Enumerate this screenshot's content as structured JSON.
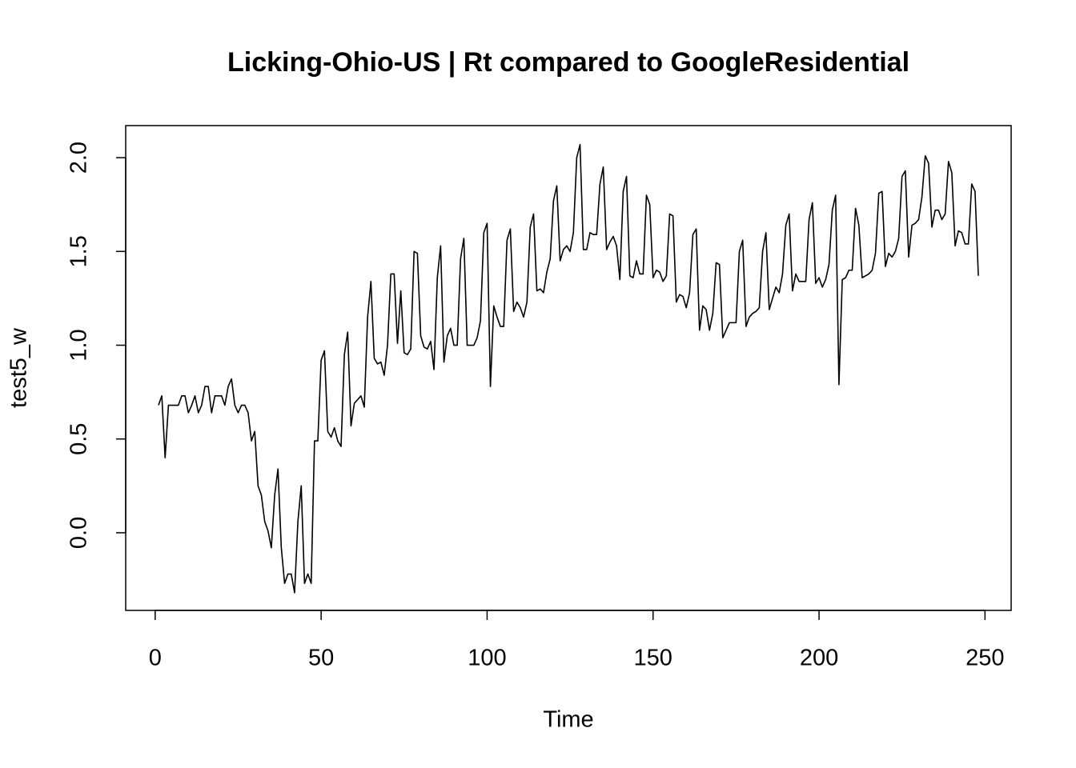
{
  "chart_data": {
    "type": "line",
    "title": "Licking-Ohio-US | Rt compared to GoogleResidential",
    "x_label": "Time",
    "y_label": "test5_w",
    "x": [
      1,
      2,
      3,
      4,
      5,
      6,
      7,
      8,
      9,
      10,
      11,
      12,
      13,
      14,
      15,
      16,
      17,
      18,
      19,
      20,
      21,
      22,
      23,
      24,
      25,
      26,
      27,
      28,
      29,
      30,
      31,
      32,
      33,
      34,
      35,
      36,
      37,
      38,
      39,
      40,
      41,
      42,
      43,
      44,
      45,
      46,
      47,
      48,
      49,
      50,
      51,
      52,
      53,
      54,
      55,
      56,
      57,
      58,
      59,
      60,
      61,
      62,
      63,
      64,
      65,
      66,
      67,
      68,
      69,
      70,
      71,
      72,
      73,
      74,
      75,
      76,
      77,
      78,
      79,
      80,
      81,
      82,
      83,
      84,
      85,
      86,
      87,
      88,
      89,
      90,
      91,
      92,
      93,
      94,
      95,
      96,
      97,
      98,
      99,
      100,
      101,
      102,
      103,
      104,
      105,
      106,
      107,
      108,
      109,
      110,
      111,
      112,
      113,
      114,
      115,
      116,
      117,
      118,
      119,
      120,
      121,
      122,
      123,
      124,
      125,
      126,
      127,
      128,
      129,
      130,
      131,
      132,
      133,
      134,
      135,
      136,
      137,
      138,
      139,
      140,
      141,
      142,
      143,
      144,
      145,
      146,
      147,
      148,
      149,
      150,
      151,
      152,
      153,
      154,
      155,
      156,
      157,
      158,
      159,
      160,
      161,
      162,
      163,
      164,
      165,
      166,
      167,
      168,
      169,
      170,
      171,
      172,
      173,
      174,
      175,
      176,
      177,
      178,
      179,
      180,
      181,
      182,
      183,
      184,
      185,
      186,
      187,
      188,
      189,
      190,
      191,
      192,
      193,
      194,
      195,
      196,
      197,
      198,
      199,
      200,
      201,
      202,
      203,
      204,
      205,
      206,
      207,
      208,
      209,
      210,
      211,
      212,
      213,
      214,
      215,
      216,
      217,
      218,
      219,
      220,
      221,
      222,
      223,
      224,
      225,
      226,
      227,
      228,
      229,
      230,
      231,
      232,
      233,
      234,
      235,
      236,
      237,
      238,
      239,
      240,
      241,
      242,
      243,
      244,
      245,
      246,
      247,
      248
    ],
    "series": [
      {
        "name": "test5_w",
        "color": "#000000",
        "values": [
          0.68,
          0.73,
          0.4,
          0.68,
          0.68,
          0.68,
          0.68,
          0.73,
          0.73,
          0.64,
          0.68,
          0.73,
          0.64,
          0.68,
          0.78,
          0.78,
          0.64,
          0.73,
          0.73,
          0.73,
          0.68,
          0.78,
          0.82,
          0.68,
          0.64,
          0.68,
          0.68,
          0.64,
          0.49,
          0.54,
          0.25,
          0.2,
          0.06,
          0.01,
          -0.08,
          0.2,
          0.34,
          -0.08,
          -0.27,
          -0.22,
          -0.22,
          -0.32,
          0.06,
          0.25,
          -0.27,
          -0.22,
          -0.27,
          0.49,
          0.49,
          0.92,
          0.97,
          0.54,
          0.51,
          0.56,
          0.49,
          0.46,
          0.95,
          1.07,
          0.57,
          0.69,
          0.71,
          0.73,
          0.67,
          1.15,
          1.34,
          0.93,
          0.9,
          0.91,
          0.84,
          1.0,
          1.38,
          1.38,
          1.01,
          1.29,
          0.96,
          0.95,
          0.98,
          1.5,
          1.49,
          1.05,
          0.99,
          0.98,
          1.02,
          0.87,
          1.36,
          1.53,
          0.91,
          1.05,
          1.09,
          1.0,
          1.0,
          1.46,
          1.57,
          1.0,
          1.0,
          1.0,
          1.04,
          1.13,
          1.6,
          1.65,
          0.78,
          1.21,
          1.15,
          1.1,
          1.1,
          1.56,
          1.62,
          1.18,
          1.23,
          1.2,
          1.15,
          1.23,
          1.63,
          1.7,
          1.29,
          1.3,
          1.28,
          1.39,
          1.46,
          1.77,
          1.85,
          1.45,
          1.51,
          1.53,
          1.5,
          1.6,
          2.0,
          2.07,
          1.51,
          1.51,
          1.6,
          1.59,
          1.59,
          1.86,
          1.95,
          1.51,
          1.55,
          1.58,
          1.53,
          1.35,
          1.82,
          1.9,
          1.37,
          1.36,
          1.45,
          1.38,
          1.38,
          1.8,
          1.75,
          1.36,
          1.4,
          1.39,
          1.34,
          1.37,
          1.7,
          1.69,
          1.23,
          1.27,
          1.26,
          1.2,
          1.28,
          1.59,
          1.62,
          1.08,
          1.21,
          1.19,
          1.08,
          1.17,
          1.44,
          1.43,
          1.04,
          1.08,
          1.12,
          1.12,
          1.12,
          1.5,
          1.56,
          1.1,
          1.15,
          1.17,
          1.18,
          1.2,
          1.5,
          1.6,
          1.19,
          1.25,
          1.31,
          1.28,
          1.38,
          1.64,
          1.7,
          1.29,
          1.38,
          1.34,
          1.34,
          1.34,
          1.67,
          1.76,
          1.33,
          1.36,
          1.31,
          1.35,
          1.43,
          1.72,
          1.8,
          0.79,
          1.35,
          1.36,
          1.4,
          1.4,
          1.73,
          1.64,
          1.36,
          1.37,
          1.38,
          1.4,
          1.49,
          1.81,
          1.82,
          1.42,
          1.49,
          1.47,
          1.5,
          1.57,
          1.9,
          1.93,
          1.47,
          1.64,
          1.65,
          1.67,
          1.79,
          2.01,
          1.97,
          1.63,
          1.72,
          1.72,
          1.67,
          1.7,
          1.98,
          1.92,
          1.53,
          1.61,
          1.6,
          1.54,
          1.54,
          1.86,
          1.82,
          1.37
        ]
      }
    ],
    "xlim": [
      -8.88,
      257.88
    ],
    "ylim": [
      -0.414,
      2.171
    ],
    "xticks": [
      0,
      50,
      100,
      150,
      200,
      250
    ],
    "yticks": [
      {
        "value": 0,
        "label": "0.0"
      },
      {
        "value": 0.5,
        "label": "0.5"
      },
      {
        "value": 1,
        "label": "1.0"
      },
      {
        "value": 1.5,
        "label": "1.5"
      },
      {
        "value": 2,
        "label": "2.0"
      }
    ],
    "grid": false
  }
}
